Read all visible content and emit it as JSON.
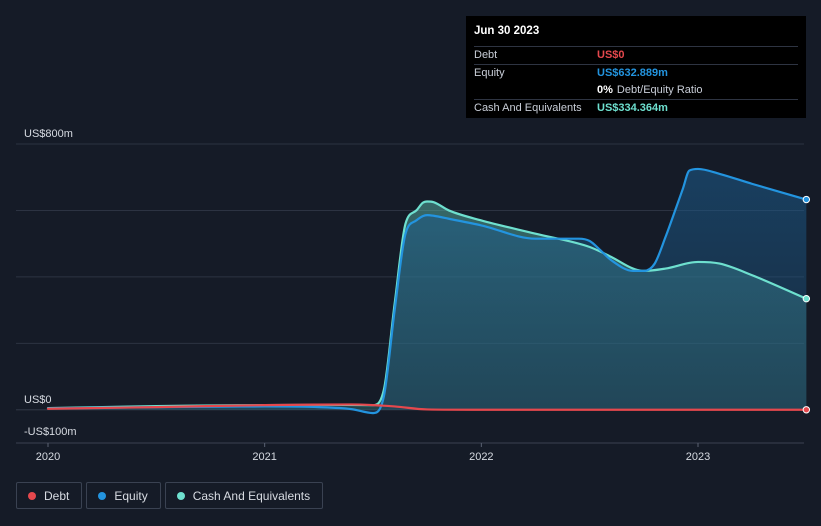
{
  "tooltip": {
    "date": "Jun 30 2023",
    "debt_label": "Debt",
    "debt_value": "US$0",
    "equity_label": "Equity",
    "equity_value": "US$632.889m",
    "ratio_value": "0%",
    "ratio_label": "Debt/Equity Ratio",
    "cash_label": "Cash And Equivalents",
    "cash_value": "US$334.364m"
  },
  "legend": {
    "debt": "Debt",
    "equity": "Equity",
    "cash": "Cash And Equivalents"
  },
  "colors": {
    "background": "#151b27",
    "debt": "#e5484d",
    "equity": "#2394df",
    "cash": "#6ee0cf",
    "grid": "#2c3342"
  },
  "chart_data": {
    "type": "area",
    "title": "",
    "xlabel": "",
    "ylabel": "",
    "ylim": [
      -100,
      800
    ],
    "y_labels": [
      "US$800m",
      "US$0",
      "-US$100m"
    ],
    "y_label_values": [
      800,
      0,
      -100
    ],
    "gridlines": [
      800,
      600,
      400,
      200,
      0
    ],
    "x_ticks": [
      "2020",
      "2021",
      "2022",
      "2023"
    ],
    "x_tick_values": [
      2020.0,
      2021.0,
      2022.0,
      2023.0
    ],
    "xlim": [
      2019.85,
      2023.5
    ],
    "series": [
      {
        "name": "Cash And Equivalents",
        "key": "cash",
        "x": [
          2020.0,
          2020.25,
          2020.5,
          2020.75,
          2021.0,
          2021.25,
          2021.5,
          2021.55,
          2021.6,
          2021.65,
          2021.7,
          2021.73,
          2021.75,
          2021.78,
          2021.85,
          2022.0,
          2022.25,
          2022.5,
          2022.6,
          2022.7,
          2022.75,
          2022.85,
          2023.0,
          2023.1,
          2023.25,
          2023.5
        ],
        "values": [
          5,
          8,
          11,
          13,
          14,
          15,
          14,
          60,
          320,
          560,
          600,
          623,
          627,
          625,
          600,
          570,
          530,
          490,
          460,
          425,
          418,
          425,
          445,
          440,
          405,
          334.364
        ]
      },
      {
        "name": "Equity",
        "key": "equity",
        "x": [
          2020.0,
          2020.25,
          2020.5,
          2020.75,
          2021.0,
          2021.25,
          2021.4,
          2021.5,
          2021.55,
          2021.6,
          2021.65,
          2021.7,
          2021.73,
          2021.75,
          2021.78,
          2021.85,
          2022.0,
          2022.25,
          2022.45,
          2022.5,
          2022.55,
          2022.6,
          2022.7,
          2022.75,
          2022.8,
          2022.85,
          2022.9,
          2022.93,
          2022.96,
          2023.0,
          2023.1,
          2023.25,
          2023.5
        ],
        "values": [
          4,
          6,
          8,
          9,
          10,
          8,
          2,
          -10,
          40,
          300,
          530,
          570,
          583,
          586,
          584,
          575,
          555,
          515,
          515,
          508,
          480,
          450,
          418,
          418,
          440,
          520,
          610,
          665,
          720,
          725,
          710,
          680,
          632.889
        ]
      },
      {
        "name": "Debt",
        "key": "debt",
        "x": [
          2020.0,
          2020.5,
          2021.0,
          2021.4,
          2021.5,
          2021.6,
          2021.75,
          2022.0,
          2022.5,
          2023.0,
          2023.5
        ],
        "values": [
          3,
          8,
          14,
          16,
          14,
          10,
          1,
          0,
          0,
          0,
          0
        ]
      }
    ]
  }
}
